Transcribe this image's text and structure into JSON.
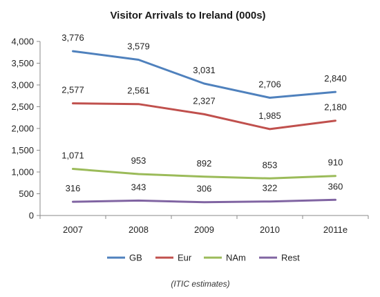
{
  "chart_data": {
    "type": "line",
    "title": "Visitor Arrivals to Ireland (000s)",
    "xlabel": "",
    "ylabel": "",
    "categories": [
      "2007",
      "2008",
      "2009",
      "2010",
      "2011e"
    ],
    "ylim": [
      0,
      4000
    ],
    "yticks": [
      0,
      500,
      1000,
      1500,
      2000,
      2500,
      3000,
      3500,
      4000
    ],
    "ytick_labels": [
      "0",
      "500",
      "1,000",
      "1,500",
      "2,000",
      "2,500",
      "3,000",
      "3,500",
      "4,000"
    ],
    "grid": false,
    "legend_position": "bottom",
    "series": [
      {
        "name": "GB",
        "color": "#4f81bd",
        "values": [
          3776,
          3579,
          3031,
          2706,
          2840
        ],
        "labels": [
          "3,776",
          "3,579",
          "3,031",
          "2,706",
          "2,840"
        ]
      },
      {
        "name": "Eur",
        "color": "#c0504d",
        "values": [
          2577,
          2561,
          2327,
          1985,
          2180
        ],
        "labels": [
          "2,577",
          "2,561",
          "2,327",
          "1,985",
          "2,180"
        ]
      },
      {
        "name": "NAm",
        "color": "#9bbb59",
        "values": [
          1071,
          953,
          892,
          853,
          910
        ],
        "labels": [
          "1,071",
          "953",
          "892",
          "853",
          "910"
        ]
      },
      {
        "name": "Rest",
        "color": "#8064a2",
        "values": [
          316,
          343,
          306,
          322,
          360
        ],
        "labels": [
          "316",
          "343",
          "306",
          "322",
          "360"
        ]
      }
    ],
    "note": "(ITIC estimates)"
  }
}
